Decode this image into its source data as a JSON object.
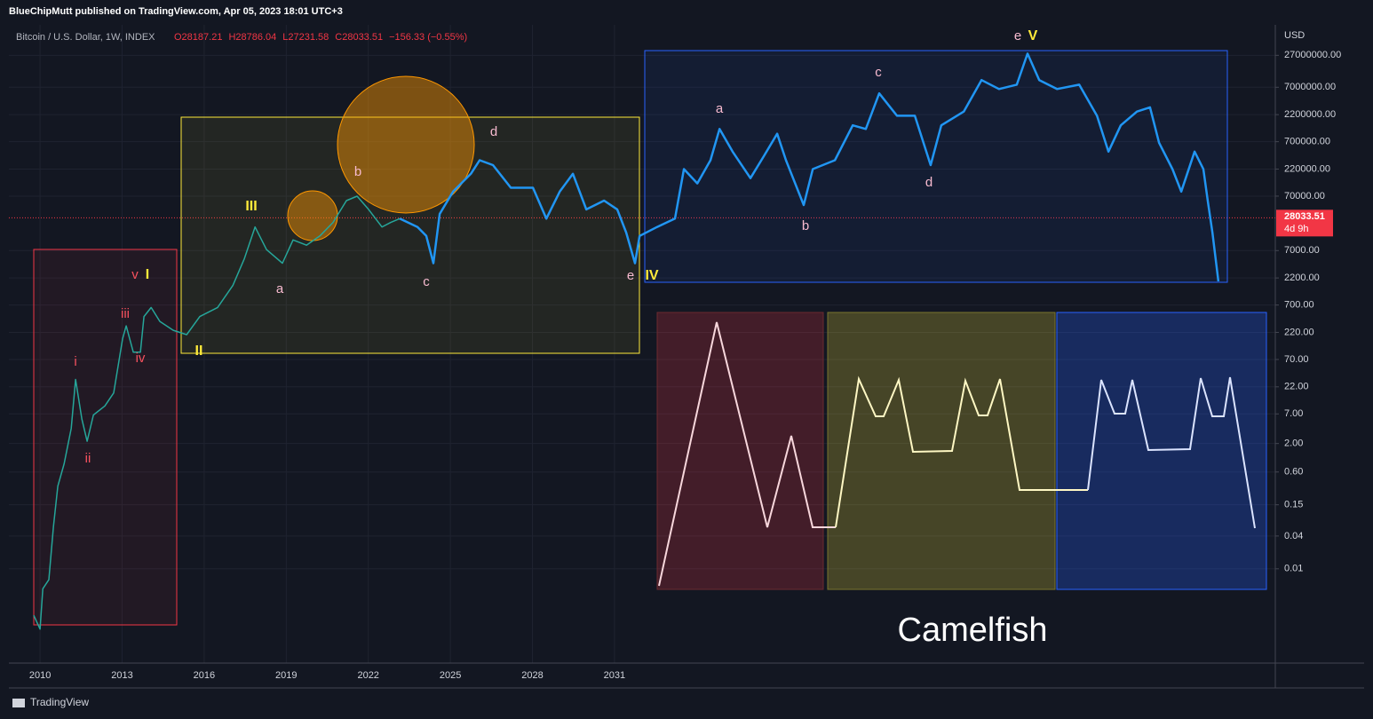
{
  "header": {
    "publisher": "BlueChipMutt published on TradingView.com, Apr 05, 2023 18:01 UTC+3"
  },
  "footer": {
    "brand": "TradingView"
  },
  "chart_data": {
    "type": "line",
    "title": "Bitcoin / U.S. Dollar, 1W, INDEX",
    "ohlc": [
      "O28187.21",
      "H28786.04",
      "L27231.58",
      "C28033.51",
      "−156.33 (−0.55%)"
    ],
    "currency": "USD",
    "log_scale": true,
    "grid": true,
    "xlim": [
      2008.86,
      2055.16
    ],
    "xticks": [
      2010,
      2013,
      2016,
      2019,
      2022,
      2025,
      2028,
      2031
    ],
    "ylim": [
      0.0002,
      98000000
    ],
    "yticks": [
      {
        "value": 27000000,
        "label": "27000000.00"
      },
      {
        "value": 7000000,
        "label": "7000000.00"
      },
      {
        "value": 2200000,
        "label": "2200000.00"
      },
      {
        "value": 700000,
        "label": "700000.00"
      },
      {
        "value": 220000,
        "label": "220000.00"
      },
      {
        "value": 70000,
        "label": "70000.00"
      },
      {
        "value": 7000,
        "label": "7000.00"
      },
      {
        "value": 2200,
        "label": "2200.00"
      },
      {
        "value": 700,
        "label": "700.00"
      },
      {
        "value": 220,
        "label": "220.00"
      },
      {
        "value": 70,
        "label": "70.00"
      },
      {
        "value": 22,
        "label": "22.00"
      },
      {
        "value": 7,
        "label": "7.00"
      },
      {
        "value": 2,
        "label": "2.00"
      },
      {
        "value": 0.6,
        "label": "0.60"
      },
      {
        "value": 0.15,
        "label": "0.15"
      },
      {
        "value": 0.04,
        "label": "0.04"
      },
      {
        "value": 0.01,
        "label": "0.01"
      }
    ],
    "price_line": {
      "value": 28033.51,
      "label": "28033.51",
      "countdown": "4d 9h",
      "color": "#f23645"
    },
    "x": [
      2009.77,
      2010,
      2010.1,
      2010.32,
      2010.49,
      2010.65,
      2010.88,
      2011.14,
      2011.3,
      2011.53,
      2011.72,
      2011.95,
      2012.37,
      2012.69,
      2013.02,
      2013.15,
      2013.41,
      2013.67,
      2013.8,
      2014.06,
      2014.38,
      2014.87,
      2015.36,
      2015.84,
      2016.49,
      2017.05,
      2017.47,
      2017.86,
      2018.28,
      2018.86,
      2019.25,
      2019.74,
      2020.23,
      2020.71,
      2021.2,
      2021.59,
      2022.01,
      2022.5,
      2022.82,
      2023.15,
      2023.8,
      2024.12,
      2024.38,
      2024.61,
      2025.1,
      2025.75,
      2026.07,
      2026.56,
      2027.21,
      2028.02,
      2028.51,
      2029,
      2029.48,
      2029.97,
      2030.62,
      2031.1,
      2031.43,
      2031.75,
      2031.92,
      2032.56,
      2033.21,
      2033.54,
      2034.03,
      2034.51,
      2034.84,
      2035.32,
      2035.97,
      2036.46,
      2036.95,
      2037.27,
      2037.92,
      2038.25,
      2039.06,
      2039.71,
      2040.19,
      2040.68,
      2041.33,
      2041.98,
      2042.56,
      2042.95,
      2043.77,
      2044.42,
      2045.06,
      2045.71,
      2046.1,
      2046.53,
      2047.18,
      2047.99,
      2048.64,
      2049.06,
      2049.51,
      2050.1,
      2050.58,
      2050.91,
      2051.4,
      2051.72,
      2052.21,
      2052.53,
      2052.69,
      2052.86,
      2053.08
    ],
    "series": [
      {
        "color": "#26a69a",
        "values": [
          0.0014,
          0.00078,
          0.0043,
          0.0063,
          0.06,
          0.33,
          0.85,
          3.8,
          30,
          5.6,
          2.2,
          6.7,
          9.8,
          17,
          170,
          290,
          95,
          95,
          430,
          630,
          350,
          240,
          200,
          430,
          630,
          1600,
          5000,
          19000,
          7300,
          4100,
          11000,
          8800,
          13000,
          23000,
          58000,
          70000,
          40000,
          19000,
          23000,
          27000,
          null,
          null,
          null,
          null,
          null,
          null,
          null,
          null,
          null,
          null,
          null,
          null,
          null,
          null,
          null,
          null,
          null,
          null,
          null,
          null,
          null,
          null,
          null,
          null,
          null,
          null,
          null,
          null,
          null,
          null,
          null,
          null,
          null,
          null,
          null,
          null,
          null,
          null,
          null,
          null,
          null,
          null,
          null,
          null,
          null,
          null,
          null,
          null,
          null,
          null,
          null,
          null,
          null,
          null,
          null,
          null,
          null,
          null,
          null,
          null,
          null
        ]
      },
      {
        "color": "#2196f3",
        "values": [
          null,
          null,
          null,
          null,
          null,
          null,
          null,
          null,
          null,
          null,
          null,
          null,
          null,
          null,
          null,
          null,
          null,
          null,
          null,
          null,
          null,
          null,
          null,
          null,
          null,
          null,
          null,
          null,
          null,
          null,
          null,
          null,
          null,
          null,
          null,
          null,
          null,
          null,
          null,
          27000,
          19000,
          13000,
          4100,
          33000,
          85000,
          180000,
          320000,
          260000,
          100000,
          100000,
          27000,
          85000,
          180000,
          40000,
          58000,
          40000,
          15000,
          4100,
          13000,
          19000,
          27000,
          220000,
          120000,
          320000,
          1200000,
          460000,
          150000,
          380000,
          980000,
          320000,
          48000,
          220000,
          320000,
          1400000,
          1200000,
          5400000,
          2100000,
          2100000,
          260000,
          1400000,
          2500000,
          9500000,
          6500000,
          7800000,
          29000000,
          9500000,
          6500000,
          7800000,
          2100000,
          460000,
          1400000,
          2500000,
          3000000,
          670000,
          220000,
          85000,
          460000,
          220000,
          58000,
          15000,
          1900
        ]
      }
    ],
    "annotations": [
      {
        "text": "v",
        "color": "#f7525f"
      },
      {
        "text": "I",
        "color": "#ffeb3b"
      },
      {
        "text": "iii",
        "color": "#f7525f"
      },
      {
        "text": "i",
        "color": "#f7525f"
      },
      {
        "text": "iv",
        "color": "#f7525f"
      },
      {
        "text": "ii",
        "color": "#f7525f"
      },
      {
        "text": "II",
        "color": "#ffeb3b"
      },
      {
        "text": "III",
        "color": "#ffeb3b"
      },
      {
        "text": "a",
        "color": "#f8bbd0"
      },
      {
        "text": "b",
        "color": "#f8bbd0"
      },
      {
        "text": "c",
        "color": "#f8bbd0"
      },
      {
        "text": "d",
        "color": "#f8bbd0"
      },
      {
        "text": "e",
        "color": "#f8bbd0"
      },
      {
        "text": "IV",
        "color": "#ffeb3b"
      },
      {
        "text": "a",
        "color": "#f8bbd0"
      },
      {
        "text": "b",
        "color": "#f8bbd0"
      },
      {
        "text": "c",
        "color": "#f8bbd0"
      },
      {
        "text": "d",
        "color": "#f8bbd0"
      },
      {
        "text": "e",
        "color": "#f8bbd0"
      },
      {
        "text": "V",
        "color": "#ffeb3b"
      }
    ],
    "watermark": "Camelfish"
  }
}
